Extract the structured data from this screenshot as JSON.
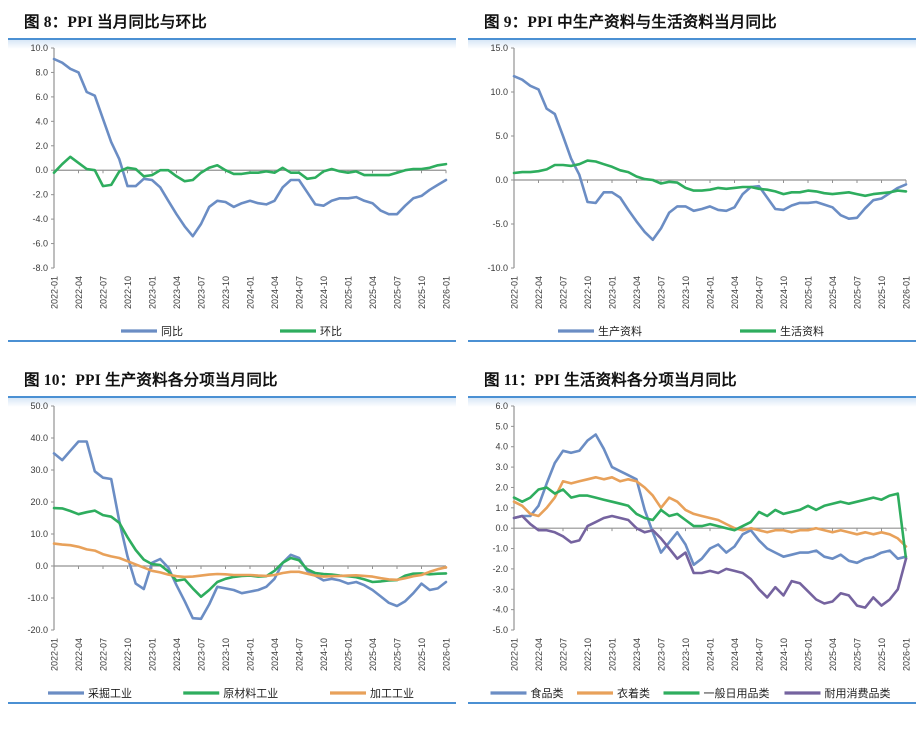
{
  "colors": {
    "panel_border": "#4b90d3",
    "panel_glow": "#d8e7f6",
    "axis": "#929292",
    "tick_label": "#3a3a3a",
    "series_blue": "#6b8dc4",
    "series_green": "#2ead5e",
    "series_orange": "#e8a15a",
    "series_purple": "#75639f"
  },
  "chart_data": [
    {
      "id": "fig8",
      "title": "图 8：PPI 当月同比与环比",
      "type": "line",
      "grid": false,
      "legend_position": "bottom",
      "x_tick_labels": [
        "2022-01",
        "2022-04",
        "2022-07",
        "2022-10",
        "2023-01",
        "2023-04",
        "2023-07",
        "2023-10",
        "2024-01",
        "2024-04",
        "2024-07",
        "2024-10",
        "2025-01",
        "2025-04",
        "2025-07",
        "2025-10",
        "2026-01"
      ],
      "ylim": [
        -8,
        10
      ],
      "ytick_step": 2,
      "series": [
        {
          "name": "同比",
          "color": "#6b8dc4",
          "values": [
            9.1,
            8.8,
            8.3,
            8.0,
            6.4,
            6.1,
            4.2,
            2.3,
            0.9,
            -1.3,
            -1.3,
            -0.7,
            -0.8,
            -1.4,
            -2.5,
            -3.6,
            -4.6,
            -5.4,
            -4.4,
            -3.0,
            -2.5,
            -2.6,
            -3.0,
            -2.7,
            -2.5,
            -2.7,
            -2.8,
            -2.5,
            -1.4,
            -0.8,
            -0.8,
            -1.8,
            -2.8,
            -2.9,
            -2.5,
            -2.3,
            -2.3,
            -2.2,
            -2.5,
            -2.7,
            -3.3,
            -3.6,
            -3.6,
            -2.9,
            -2.3,
            -2.1,
            -1.6,
            -1.2,
            -0.8
          ]
        },
        {
          "name": "环比",
          "color": "#2ead5e",
          "values": [
            -0.2,
            0.5,
            1.1,
            0.6,
            0.1,
            0.0,
            -1.3,
            -1.2,
            -0.1,
            0.2,
            0.1,
            -0.5,
            -0.4,
            0.0,
            0.0,
            -0.5,
            -0.9,
            -0.8,
            -0.2,
            0.2,
            0.4,
            0.0,
            -0.3,
            -0.3,
            -0.2,
            -0.2,
            -0.1,
            -0.2,
            0.2,
            -0.2,
            -0.2,
            -0.7,
            -0.6,
            -0.1,
            0.1,
            -0.1,
            -0.2,
            -0.1,
            -0.4,
            -0.4,
            -0.4,
            -0.4,
            -0.2,
            0.0,
            0.1,
            0.1,
            0.2,
            0.4,
            0.5
          ]
        }
      ]
    },
    {
      "id": "fig9",
      "title": "图 9：PPI 中生产资料与生活资料当月同比",
      "type": "line",
      "grid": false,
      "legend_position": "bottom",
      "x_tick_labels": [
        "2022-01",
        "2022-04",
        "2022-07",
        "2022-10",
        "2023-01",
        "2023-04",
        "2023-07",
        "2023-10",
        "2024-01",
        "2024-04",
        "2024-07",
        "2024-10",
        "2025-01",
        "2025-04",
        "2025-07",
        "2025-10",
        "2026-01"
      ],
      "ylim": [
        -10,
        15
      ],
      "ytick_step": 5,
      "series": [
        {
          "name": "生产资料",
          "color": "#6b8dc4",
          "values": [
            11.8,
            11.4,
            10.7,
            10.3,
            8.1,
            7.5,
            5.0,
            2.4,
            0.6,
            -2.5,
            -2.6,
            -1.4,
            -1.4,
            -2.0,
            -3.4,
            -4.7,
            -5.9,
            -6.8,
            -5.5,
            -3.7,
            -3.0,
            -3.0,
            -3.5,
            -3.3,
            -3.0,
            -3.4,
            -3.5,
            -3.1,
            -1.6,
            -0.8,
            -0.7,
            -2.0,
            -3.3,
            -3.4,
            -2.9,
            -2.6,
            -2.6,
            -2.5,
            -2.8,
            -3.1,
            -4.0,
            -4.4,
            -4.3,
            -3.2,
            -2.3,
            -2.1,
            -1.5,
            -0.9,
            -0.5
          ]
        },
        {
          "name": "生活资料",
          "color": "#2ead5e",
          "values": [
            0.8,
            0.9,
            0.9,
            1.0,
            1.2,
            1.7,
            1.7,
            1.6,
            1.8,
            2.2,
            2.1,
            1.8,
            1.5,
            1.1,
            0.9,
            0.4,
            0.1,
            0.0,
            -0.4,
            -0.2,
            -0.3,
            -0.9,
            -1.2,
            -1.2,
            -1.1,
            -0.9,
            -1.0,
            -0.9,
            -0.8,
            -0.8,
            -1.0,
            -1.1,
            -1.3,
            -1.6,
            -1.4,
            -1.4,
            -1.2,
            -1.3,
            -1.5,
            -1.6,
            -1.5,
            -1.4,
            -1.6,
            -1.8,
            -1.6,
            -1.5,
            -1.4,
            -1.2,
            -1.3
          ]
        }
      ]
    },
    {
      "id": "fig10",
      "title": "图 10：PPI 生产资料各分项当月同比",
      "type": "line",
      "grid": false,
      "legend_position": "bottom",
      "x_tick_labels": [
        "2022-01",
        "2022-04",
        "2022-07",
        "2022-10",
        "2023-01",
        "2023-04",
        "2023-07",
        "2023-10",
        "2024-01",
        "2024-04",
        "2024-07",
        "2024-10",
        "2025-01",
        "2025-04",
        "2025-07",
        "2025-10",
        "2026-01"
      ],
      "ylim": [
        -20,
        50
      ],
      "ytick_step": 10,
      "series": [
        {
          "name": "采掘工业",
          "color": "#6b8dc4",
          "values": [
            35.2,
            33.1,
            36.0,
            38.9,
            38.9,
            29.6,
            27.6,
            27.2,
            14.0,
            3.0,
            -5.5,
            -7.2,
            1.0,
            2.2,
            -0.5,
            -6.0,
            -11.0,
            -16.3,
            -16.5,
            -12.0,
            -6.5,
            -7.0,
            -7.5,
            -8.5,
            -8.0,
            -7.5,
            -6.5,
            -4.0,
            1.0,
            3.5,
            2.5,
            -1.5,
            -3.0,
            -4.5,
            -4.0,
            -4.5,
            -5.5,
            -5.0,
            -6.0,
            -7.5,
            -9.5,
            -11.5,
            -12.5,
            -11.0,
            -8.5,
            -5.5,
            -7.5,
            -7.0,
            -5.0
          ]
        },
        {
          "name": "原材料工业",
          "color": "#2ead5e",
          "values": [
            18.1,
            18.0,
            17.2,
            16.2,
            16.8,
            17.3,
            15.9,
            15.4,
            13.5,
            9.0,
            5.0,
            2.0,
            0.6,
            0.3,
            -1.7,
            -4.6,
            -4.2,
            -7.0,
            -9.6,
            -7.5,
            -5.0,
            -4.0,
            -3.4,
            -3.1,
            -3.0,
            -3.3,
            -3.2,
            -1.5,
            1.0,
            2.5,
            1.8,
            -1.0,
            -2.2,
            -2.5,
            -2.7,
            -3.0,
            -3.2,
            -3.5,
            -4.2,
            -5.0,
            -4.8,
            -4.5,
            -4.4,
            -3.0,
            -2.4,
            -2.3,
            -2.6,
            -2.4,
            -2.3
          ]
        },
        {
          "name": "加工工业",
          "color": "#e8a15a",
          "values": [
            7.0,
            6.7,
            6.5,
            6.0,
            5.2,
            4.8,
            3.7,
            3.0,
            2.5,
            1.5,
            0.5,
            -0.5,
            -1.5,
            -2.0,
            -2.7,
            -3.2,
            -3.4,
            -3.3,
            -3.0,
            -2.7,
            -2.5,
            -2.6,
            -2.8,
            -2.8,
            -2.8,
            -3.0,
            -3.1,
            -2.8,
            -2.2,
            -1.8,
            -1.8,
            -2.4,
            -3.0,
            -3.3,
            -3.2,
            -3.1,
            -3.0,
            -2.9,
            -3.1,
            -3.3,
            -3.8,
            -4.2,
            -4.3,
            -3.8,
            -3.2,
            -2.8,
            -1.8,
            -1.0,
            -0.4
          ]
        }
      ]
    },
    {
      "id": "fig11",
      "title": "图 11：PPI 生活资料各分项当月同比",
      "type": "line",
      "grid": false,
      "legend_position": "bottom",
      "x_tick_labels": [
        "2022-01",
        "2022-04",
        "2022-07",
        "2022-10",
        "2023-01",
        "2023-04",
        "2023-07",
        "2023-10",
        "2024-01",
        "2024-04",
        "2024-07",
        "2024-10",
        "2025-01",
        "2025-04",
        "2025-07",
        "2025-10",
        "2026-01"
      ],
      "ylim": [
        -5,
        6
      ],
      "ytick_step": 1,
      "series": [
        {
          "name": "食品类",
          "color": "#6b8dc4",
          "values": [
            0.5,
            0.6,
            0.6,
            1.1,
            2.2,
            3.2,
            3.8,
            3.7,
            3.8,
            4.3,
            4.6,
            3.9,
            3.0,
            2.8,
            2.6,
            2.4,
            0.9,
            -0.2,
            -1.2,
            -0.7,
            -0.2,
            -0.8,
            -1.8,
            -1.5,
            -1.0,
            -0.8,
            -1.2,
            -0.9,
            -0.3,
            -0.1,
            -0.6,
            -1.0,
            -1.2,
            -1.4,
            -1.3,
            -1.2,
            -1.2,
            -1.1,
            -1.4,
            -1.5,
            -1.3,
            -1.6,
            -1.7,
            -1.5,
            -1.4,
            -1.2,
            -1.1,
            -1.5,
            -1.4
          ]
        },
        {
          "name": "衣着类",
          "color": "#e8a15a",
          "values": [
            1.3,
            1.1,
            0.7,
            0.6,
            1.0,
            1.5,
            2.3,
            2.2,
            2.3,
            2.4,
            2.5,
            2.4,
            2.5,
            2.3,
            2.4,
            2.3,
            2.0,
            1.6,
            1.0,
            1.5,
            1.3,
            0.9,
            0.7,
            0.6,
            0.5,
            0.4,
            0.2,
            0.0,
            -0.1,
            0.0,
            -0.1,
            -0.2,
            -0.1,
            -0.1,
            -0.2,
            -0.1,
            -0.1,
            0.0,
            -0.1,
            -0.2,
            -0.1,
            -0.2,
            -0.3,
            -0.2,
            -0.3,
            -0.2,
            -0.3,
            -0.5,
            -0.9
          ]
        },
        {
          "name": "一般日用品类",
          "color": "#2ead5e",
          "values": [
            1.5,
            1.3,
            1.5,
            1.9,
            2.0,
            1.7,
            1.9,
            1.5,
            1.6,
            1.6,
            1.5,
            1.4,
            1.3,
            1.2,
            1.1,
            0.7,
            0.5,
            0.4,
            0.9,
            0.6,
            0.7,
            0.4,
            0.1,
            0.1,
            0.2,
            0.1,
            0.0,
            -0.1,
            0.1,
            0.3,
            0.8,
            0.6,
            0.9,
            0.7,
            0.8,
            0.9,
            1.1,
            0.9,
            1.1,
            1.2,
            1.3,
            1.2,
            1.3,
            1.4,
            1.5,
            1.4,
            1.6,
            1.7,
            -1.5
          ]
        },
        {
          "name": "耐用消费品类",
          "color": "#75639f",
          "values": [
            0.5,
            0.6,
            0.2,
            -0.1,
            -0.1,
            -0.2,
            -0.4,
            -0.7,
            -0.6,
            0.1,
            0.3,
            0.5,
            0.6,
            0.5,
            0.4,
            0.0,
            -0.2,
            -0.1,
            -0.5,
            -1.0,
            -1.5,
            -1.2,
            -2.2,
            -2.2,
            -2.1,
            -2.2,
            -2.0,
            -2.1,
            -2.2,
            -2.5,
            -3.0,
            -3.4,
            -2.9,
            -3.3,
            -2.6,
            -2.7,
            -3.1,
            -3.5,
            -3.7,
            -3.6,
            -3.2,
            -3.3,
            -3.8,
            -3.9,
            -3.4,
            -3.8,
            -3.5,
            -3.0,
            -1.5
          ]
        }
      ]
    }
  ]
}
